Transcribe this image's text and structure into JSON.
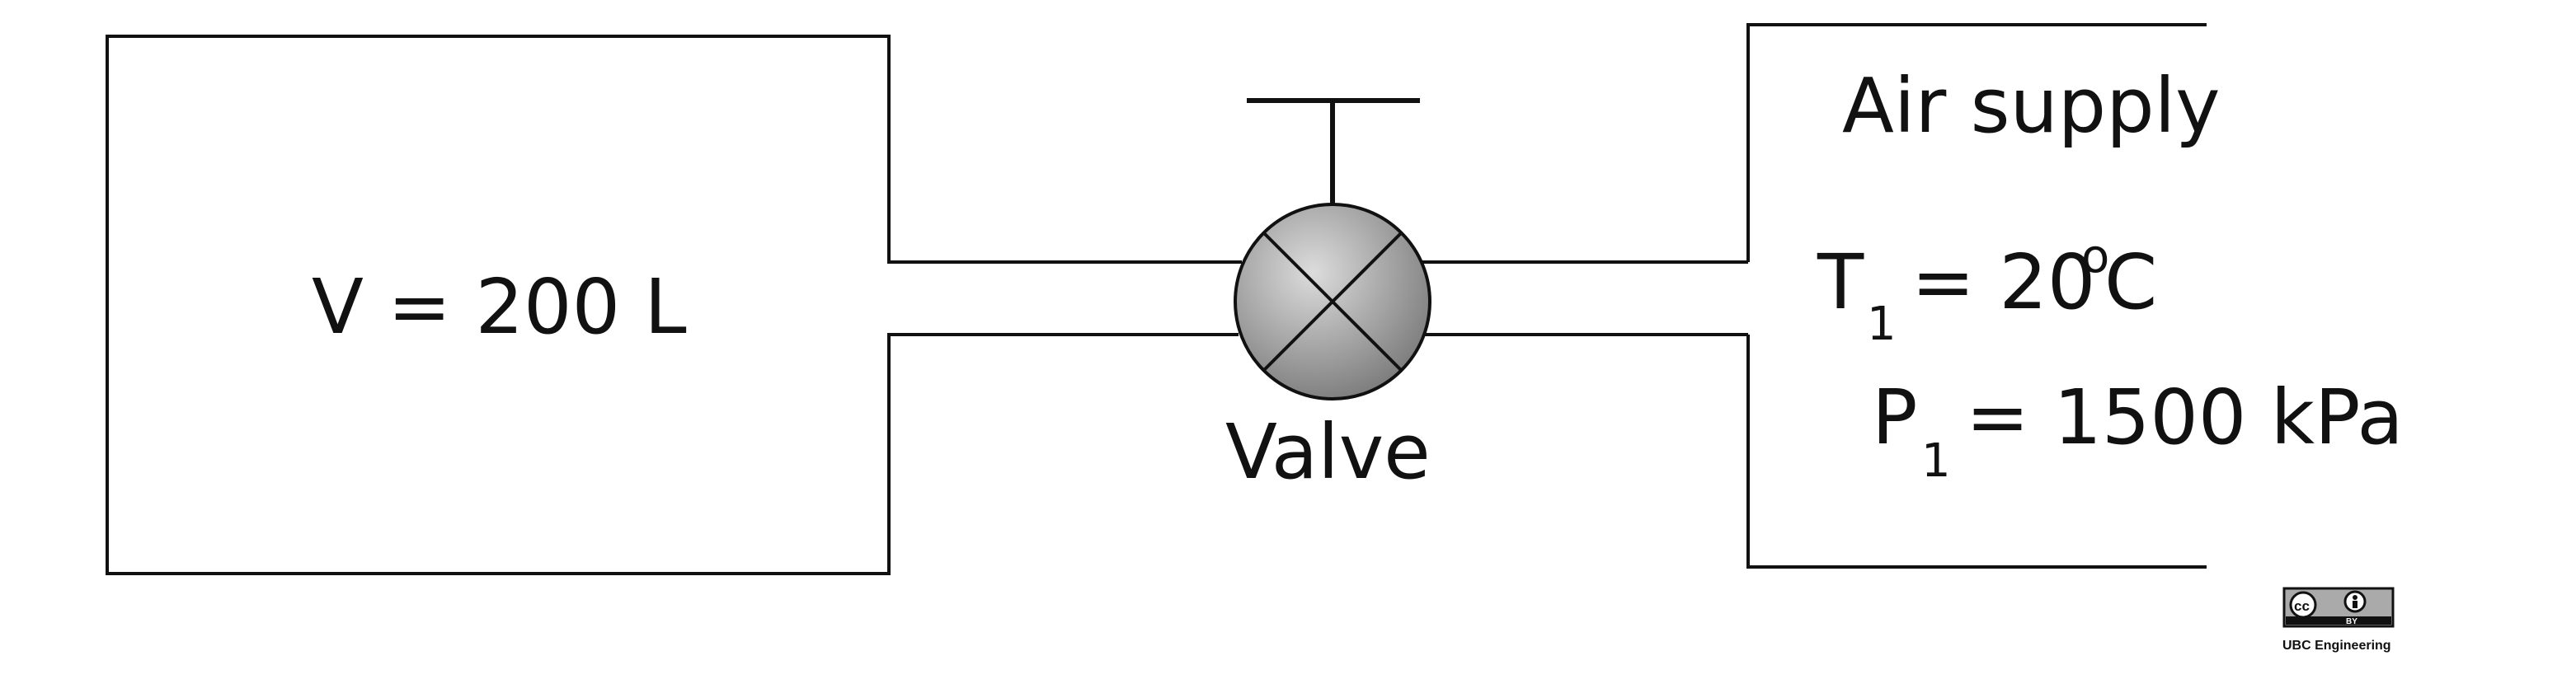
{
  "tank": {
    "volume_label": "V = 200 L"
  },
  "valve": {
    "label": "Valve"
  },
  "supply": {
    "title": "Air supply",
    "temperature": {
      "symbol": "T",
      "subscript": "1",
      "value": "= 20",
      "degree": "o",
      "unit": "C"
    },
    "pressure": {
      "symbol": "P",
      "subscript": "1",
      "value": "= 1500 kPa"
    }
  },
  "license": {
    "badge_cc": "cc",
    "badge_by": "BY",
    "attribution": "UBC Engineering"
  },
  "colors": {
    "line": "#111111",
    "valve_fill_light": "#d9d9d9",
    "valve_fill_dark": "#7f7f7f",
    "background": "#ffffff"
  }
}
